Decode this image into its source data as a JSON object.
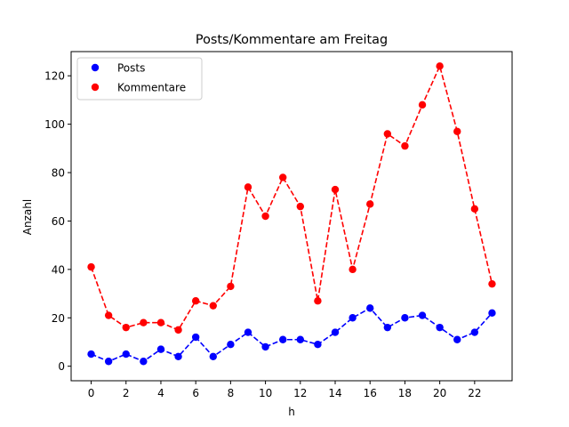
{
  "chart_data": {
    "type": "line",
    "title": "Posts/Kommentare am Freitag",
    "xlabel": "h",
    "ylabel": "Anzahl",
    "xlim": [
      -1.15,
      24.15
    ],
    "ylim": [
      -6,
      130
    ],
    "xticks": [
      0,
      2,
      4,
      6,
      8,
      10,
      12,
      14,
      16,
      18,
      20,
      22
    ],
    "yticks": [
      0,
      20,
      40,
      60,
      80,
      100,
      120
    ],
    "grid": false,
    "legend_position": "top-left",
    "x": [
      0,
      1,
      2,
      3,
      4,
      5,
      6,
      7,
      8,
      9,
      10,
      11,
      12,
      13,
      14,
      15,
      16,
      17,
      18,
      19,
      20,
      21,
      22,
      23
    ],
    "series": [
      {
        "name": "Posts",
        "color": "#0000ff",
        "line_style": "dashed",
        "marker": "circle",
        "values": [
          5,
          2,
          5,
          2,
          7,
          4,
          12,
          4,
          9,
          14,
          8,
          11,
          11,
          9,
          14,
          20,
          24,
          16,
          20,
          21,
          16,
          11,
          14,
          22
        ]
      },
      {
        "name": "Kommentare",
        "color": "#ff0000",
        "line_style": "dashed",
        "marker": "circle",
        "values": [
          41,
          21,
          16,
          18,
          18,
          15,
          27,
          25,
          33,
          74,
          62,
          78,
          66,
          27,
          73,
          40,
          67,
          96,
          91,
          108,
          124,
          97,
          65,
          34
        ]
      }
    ]
  }
}
